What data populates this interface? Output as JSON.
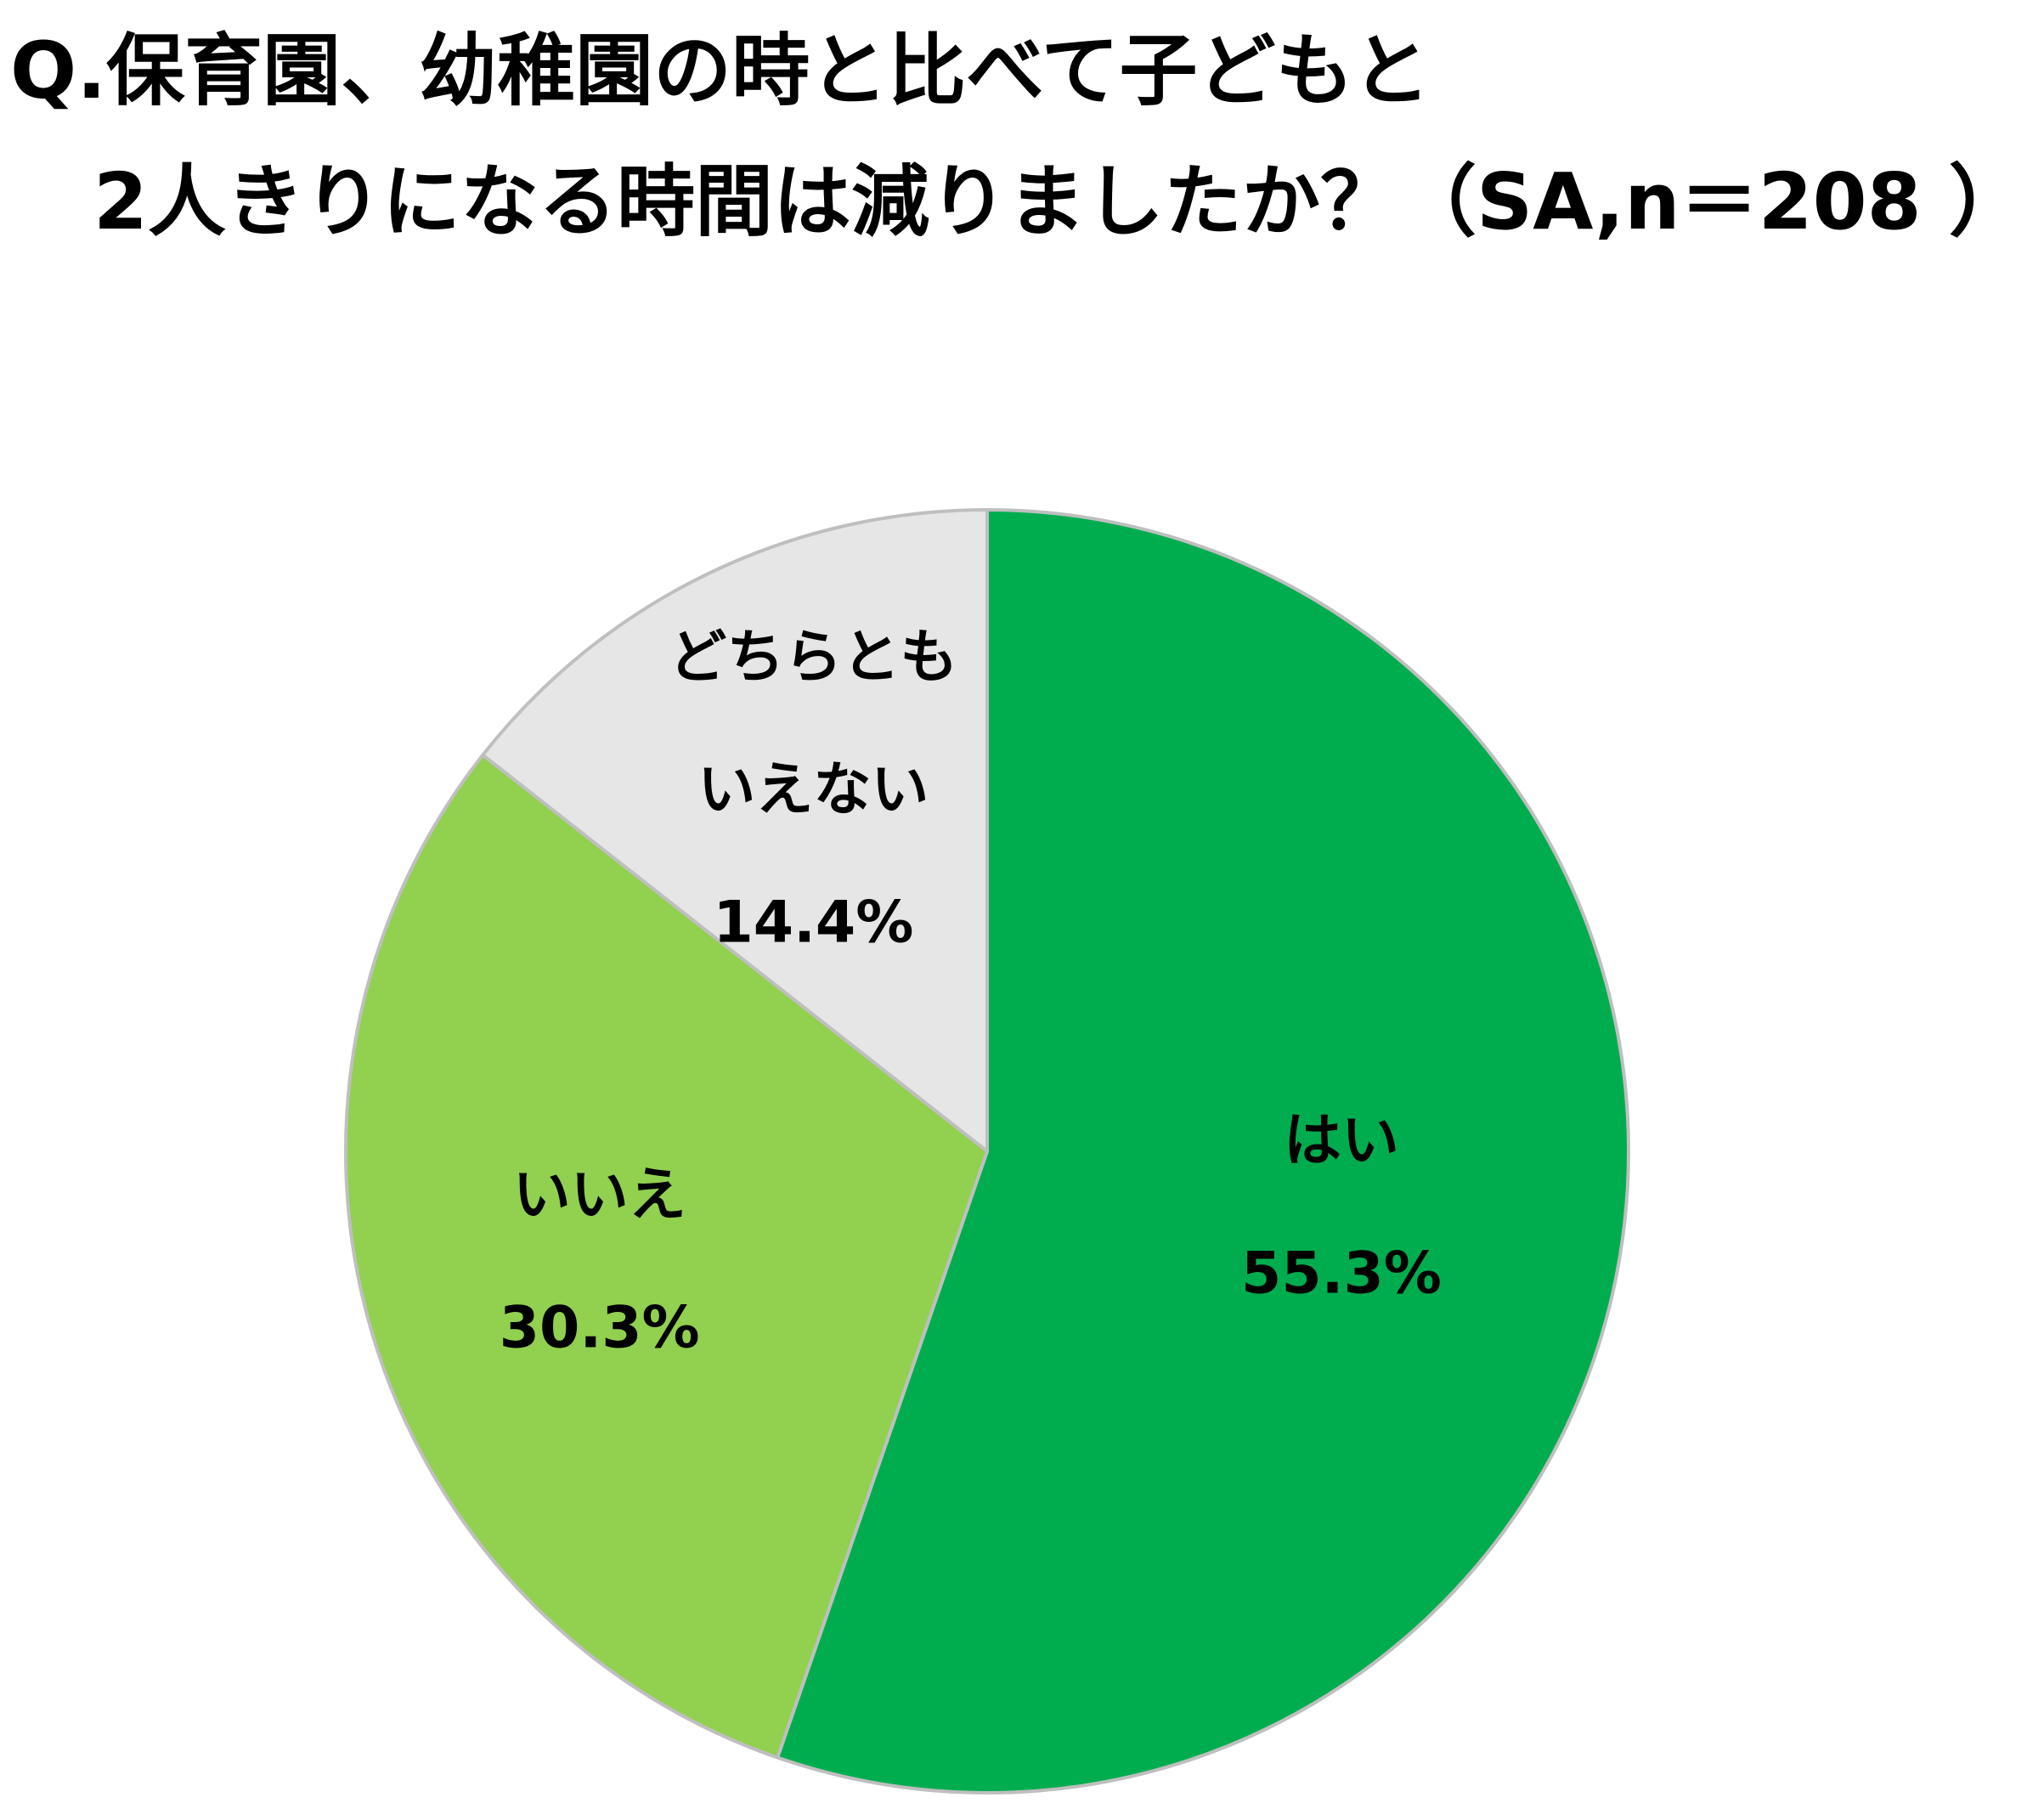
{
  "title": {
    "line1": "Q.保育園、幼稚園の時と比べて子どもと",
    "line2": "2人きりになる時間は減りましたか？（SA,n＝208 ）"
  },
  "chart_data": {
    "type": "pie",
    "title": "Q.保育園、幼稚園の時と比べて子どもと2人きりになる時間は減りましたか？（SA,n＝208 ）",
    "start_angle": "12 o'clock",
    "direction": "clockwise",
    "slices": [
      {
        "label": "はい",
        "value": 55.3,
        "value_label": "55.3%",
        "color": "#00AD4E"
      },
      {
        "label": "いいえ",
        "value": 30.3,
        "value_label": "30.3%",
        "color": "#92D050"
      },
      {
        "label": "どちらともいえない",
        "label_lines": [
          "どちらとも",
          "いえない"
        ],
        "value": 14.4,
        "value_label": "14.4%",
        "color": "#E6E6E6"
      }
    ],
    "border_color": "#BFBFBF",
    "legend": "none"
  }
}
